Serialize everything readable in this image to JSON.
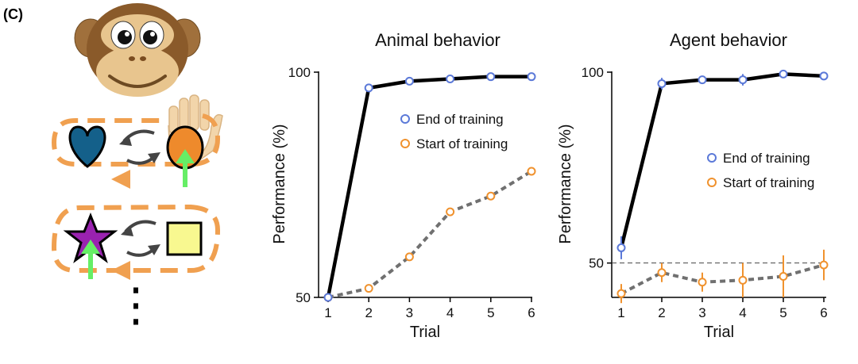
{
  "panel_label": "(C)",
  "illustration": {
    "characters": "monkey-face",
    "rows": [
      {
        "left_shape": "heart",
        "right_shape": "circle",
        "arrow_on": "right"
      },
      {
        "left_shape": "star",
        "right_shape": "square",
        "arrow_on": "left"
      }
    ],
    "continuation": "⋮"
  },
  "colors": {
    "end_training": "#5b79d8",
    "start_training": "#f0922e",
    "mean_line_end": "#000000",
    "mean_line_start": "#707070",
    "accent_orange": "#f0a050",
    "heart": "#14608a",
    "circle": "#ee8a2c",
    "star": "#9a22b0",
    "square": "#f8f890",
    "green_arrow": "#66ee66"
  },
  "chart_data": [
    {
      "type": "line",
      "title": "Animal behavior",
      "xlabel": "Trial",
      "ylabel": "Performance (%)",
      "x": [
        1,
        2,
        3,
        4,
        5,
        6
      ],
      "xlim": [
        1,
        6
      ],
      "ylim": [
        50,
        100
      ],
      "yticks": [
        50,
        100
      ],
      "reference_line": null,
      "legend_position": "upper-middle",
      "series": [
        {
          "name": "End of training",
          "values": [
            50,
            96.5,
            98,
            98.5,
            99,
            99
          ],
          "errors": null,
          "style": "solid"
        },
        {
          "name": "Start of training",
          "values": [
            50,
            52,
            59,
            69,
            72.5,
            78
          ],
          "errors": null,
          "style": "dashed"
        }
      ]
    },
    {
      "type": "line",
      "title": "Agent behavior",
      "xlabel": "Trial",
      "ylabel": "Performance (%)",
      "x": [
        1,
        2,
        3,
        4,
        5,
        6
      ],
      "xlim": [
        1,
        6
      ],
      "ylim": [
        41,
        100
      ],
      "yticks": [
        50,
        100
      ],
      "reference_line": 50,
      "legend_position": "middle-right",
      "series": [
        {
          "name": "End of training",
          "values": [
            54,
            97,
            98,
            98,
            99.5,
            99
          ],
          "errors": [
            3,
            1.5,
            1,
            1.5,
            0.5,
            0.5
          ],
          "style": "solid"
        },
        {
          "name": "Start of training",
          "values": [
            42,
            47.5,
            45,
            45.5,
            46.5,
            49.5
          ],
          "errors": [
            2.5,
            2.5,
            2.5,
            4.5,
            5.5,
            4
          ],
          "style": "dashed"
        }
      ]
    }
  ]
}
